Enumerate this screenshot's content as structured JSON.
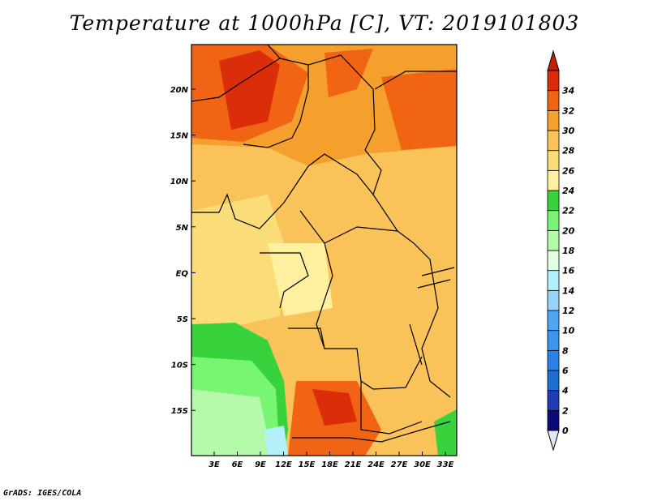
{
  "title": "Temperature at 1000hPa [C], VT: 2019101803",
  "credit": "GrADS: IGES/COLA",
  "map": {
    "lat_labels": [
      "20N",
      "15N",
      "10N",
      "5N",
      "EQ",
      "5S",
      "10S",
      "15S"
    ],
    "lon_labels": [
      "3E",
      "6E",
      "9E",
      "12E",
      "15E",
      "18E",
      "21E",
      "24E",
      "27E",
      "30E",
      "33E"
    ]
  },
  "colorbar": {
    "levels": [
      "0",
      "2",
      "4",
      "6",
      "8",
      "10",
      "12",
      "14",
      "16",
      "18",
      "20",
      "22",
      "24",
      "26",
      "28",
      "30",
      "32",
      "34"
    ],
    "colors": [
      "#e6e6fa",
      "#0a0a78",
      "#1e3cb4",
      "#1e6ed2",
      "#2882e6",
      "#3c96f0",
      "#50a5f5",
      "#96d2fa",
      "#b4f0fa",
      "#e1ffe1",
      "#b4faaa",
      "#78f573",
      "#37d23c",
      "#fff0a0",
      "#fadc78",
      "#fac35a",
      "#f5a02d",
      "#f06414",
      "#dc2d0a",
      "#c81e00"
    ]
  }
}
